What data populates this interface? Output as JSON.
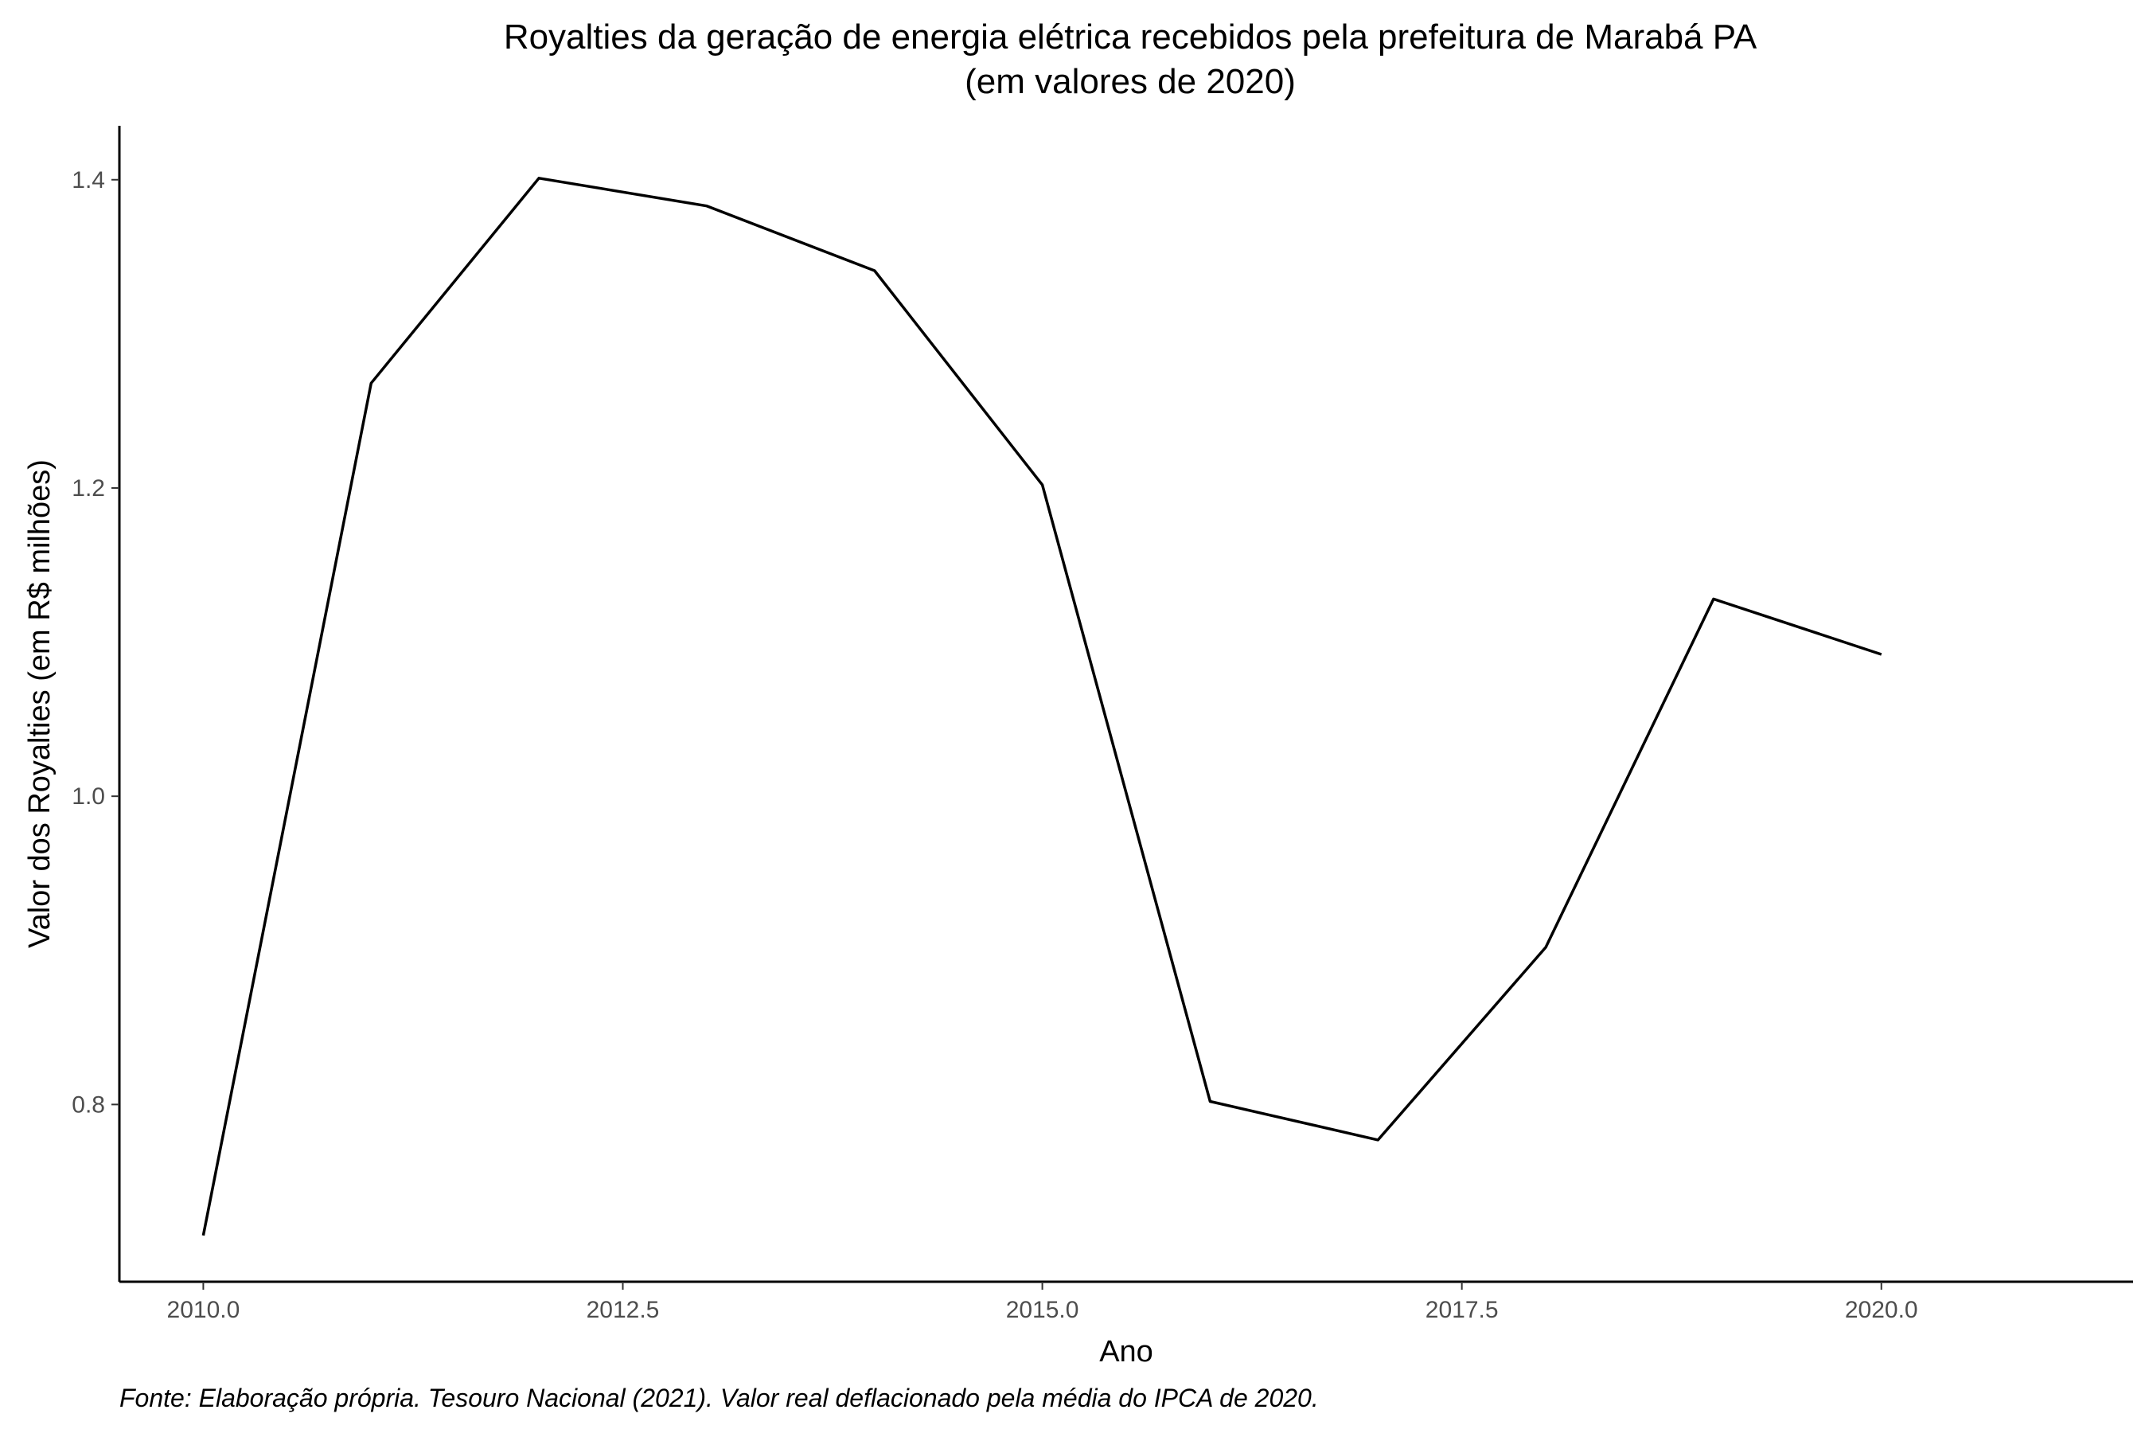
{
  "chart_data": {
    "type": "line",
    "title": "Royalties da geração de energia elétrica recebidos pela prefeitura de Marabá PA",
    "subtitle": "(em valores de 2020)",
    "xlabel": "Ano",
    "ylabel": "Valor dos Royalties (em R$ milhões)",
    "caption": "Fonte: Elaboração própria. Tesouro Nacional (2021). Valor real deflacionado pela média do IPCA de 2020.",
    "x": [
      2010,
      2011,
      2012,
      2013,
      2014,
      2015,
      2016,
      2017,
      2018,
      2019,
      2020
    ],
    "values": [
      0.715,
      1.268,
      1.401,
      1.383,
      1.341,
      1.202,
      0.802,
      0.777,
      0.902,
      1.128,
      1.092
    ],
    "xlim": [
      2009.5,
      2021.5
    ],
    "ylim": [
      0.685,
      1.435
    ],
    "x_ticks": [
      2010.0,
      2012.5,
      2015.0,
      2017.5,
      2020.0
    ],
    "x_tick_labels": [
      "2010.0",
      "2012.5",
      "2015.0",
      "2017.5",
      "2020.0"
    ],
    "y_ticks": [
      0.8,
      1.0,
      1.2,
      1.4
    ],
    "y_tick_labels": [
      "0.8",
      "1.0",
      "1.2",
      "1.4"
    ],
    "grid": false,
    "line_color": "#000000"
  }
}
